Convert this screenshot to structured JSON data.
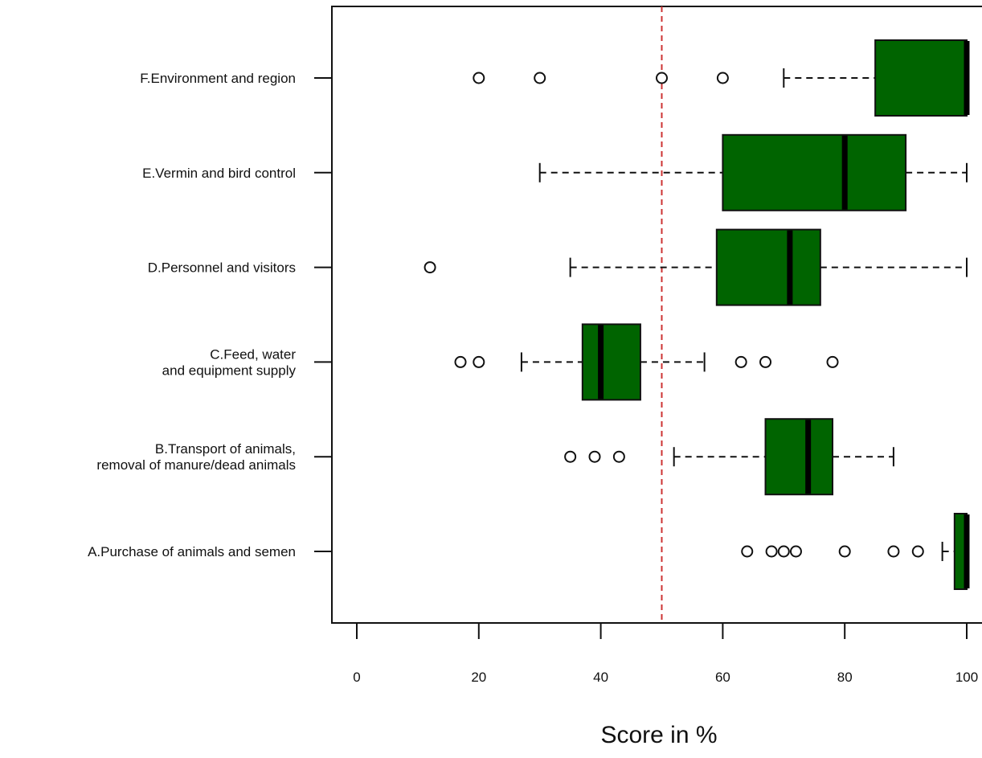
{
  "chart_data": {
    "type": "boxplot",
    "orientation": "horizontal",
    "title": "",
    "xlabel": "Score in %",
    "ylabel": "",
    "xlim": [
      -2,
      101
    ],
    "x_ticks": [
      0,
      20,
      40,
      60,
      80,
      100
    ],
    "x_tick_labels": [
      "0",
      "20",
      "40",
      "60",
      "80",
      "100"
    ],
    "reference_line": {
      "value": 50,
      "color": "#cc3333",
      "style": "dashed"
    },
    "box_color": "#006400",
    "categories": [
      {
        "label_lines": [
          "F.Environment and region"
        ],
        "whisker_low": 70,
        "q1": 85,
        "median": 100,
        "q3": 100,
        "whisker_high": 100,
        "outliers": [
          20,
          30,
          50,
          60
        ]
      },
      {
        "label_lines": [
          "E.Vermin and bird control"
        ],
        "whisker_low": 30,
        "q1": 60,
        "median": 80,
        "q3": 90,
        "whisker_high": 100,
        "outliers": []
      },
      {
        "label_lines": [
          "D.Personnel and visitors"
        ],
        "whisker_low": 35,
        "q1": 59,
        "median": 71,
        "q3": 76,
        "whisker_high": 100,
        "outliers": [
          12
        ]
      },
      {
        "label_lines": [
          "C.Feed, water",
          "and equipment supply"
        ],
        "whisker_low": 27,
        "q1": 37,
        "median": 40,
        "q3": 46.5,
        "whisker_high": 57,
        "outliers": [
          17,
          20,
          63,
          67,
          78
        ]
      },
      {
        "label_lines": [
          "B.Transport of animals,",
          "removal of manure/dead animals"
        ],
        "whisker_low": 52,
        "q1": 67,
        "median": 74,
        "q3": 78,
        "whisker_high": 88,
        "outliers": [
          35,
          39,
          43
        ]
      },
      {
        "label_lines": [
          "A.Purchase of animals and semen"
        ],
        "whisker_low": 96,
        "q1": 98,
        "median": 100,
        "q3": 100,
        "whisker_high": 100,
        "outliers": [
          64,
          68,
          70,
          72,
          80,
          88,
          92
        ]
      }
    ],
    "grid": false,
    "legend": "none"
  }
}
